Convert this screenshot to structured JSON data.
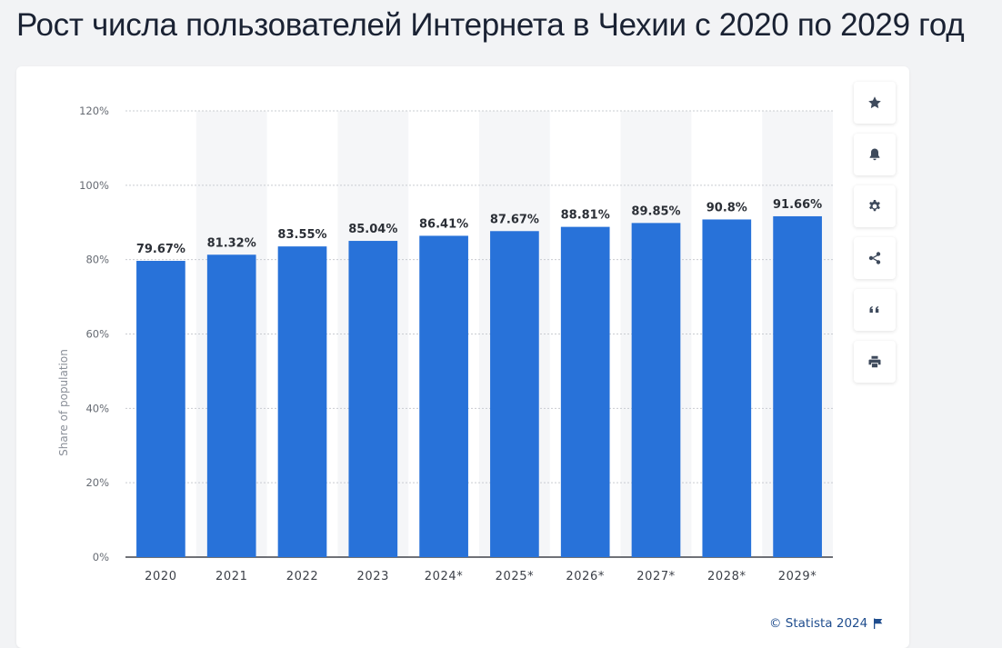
{
  "title": "Рост числа пользователей Интернета в Чехии с 2020 по 2029 год",
  "credit": "© Statista 2024",
  "toolbar": {
    "items": [
      {
        "name": "favorite-button",
        "icon": "star-icon"
      },
      {
        "name": "notification-button",
        "icon": "bell-icon"
      },
      {
        "name": "settings-button",
        "icon": "gear-icon"
      },
      {
        "name": "share-button",
        "icon": "share-icon"
      },
      {
        "name": "cite-button",
        "icon": "quote-icon"
      },
      {
        "name": "print-button",
        "icon": "printer-icon"
      }
    ]
  },
  "chart_data": {
    "type": "bar",
    "title": "",
    "xlabel": "",
    "ylabel": "Share of population",
    "categories": [
      "2020",
      "2021",
      "2022",
      "2023",
      "2024*",
      "2025*",
      "2026*",
      "2027*",
      "2028*",
      "2029*"
    ],
    "values": [
      79.67,
      81.32,
      83.55,
      85.04,
      86.41,
      87.67,
      88.81,
      89.85,
      90.8,
      91.66
    ],
    "value_labels": [
      "79.67%",
      "81.32%",
      "83.55%",
      "85.04%",
      "86.41%",
      "87.67%",
      "88.81%",
      "89.85%",
      "90.8%",
      "91.66%"
    ],
    "ylim": [
      0,
      120
    ],
    "yticks": [
      0,
      20,
      40,
      60,
      80,
      100,
      120
    ],
    "ytick_labels": [
      "0%",
      "20%",
      "40%",
      "60%",
      "80%",
      "100%",
      "120%"
    ],
    "grid": true,
    "colors": {
      "bar": "#2872d9",
      "band": "#f5f6f8",
      "grid": "#c9ccd1"
    }
  }
}
